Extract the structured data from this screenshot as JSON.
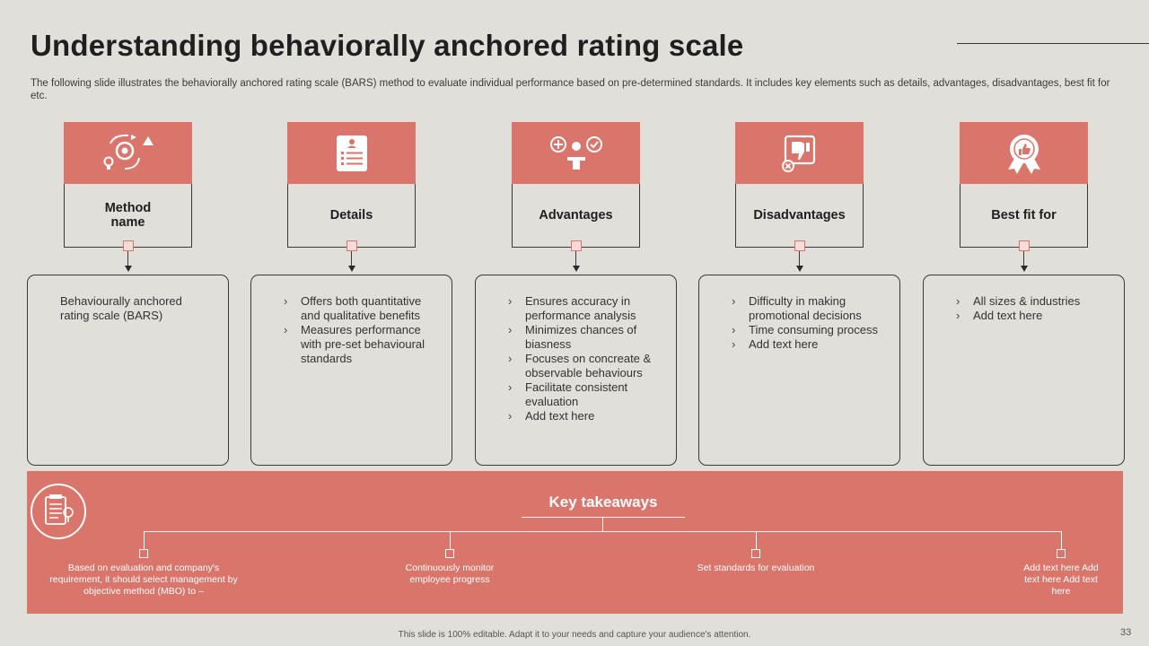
{
  "slide": {
    "title": "Understanding behaviorally anchored rating scale",
    "subtitle": "The following slide illustrates the behaviorally anchored rating scale (BARS) method to evaluate individual performance based on pre-determined standards. It includes key elements such as details, advantages, disadvantages, best fit for etc.",
    "footer": "This slide is 100% editable. Adapt it to your needs and capture your audience's attention.",
    "page_number": "33"
  },
  "columns": [
    {
      "label": "Method name",
      "icon": "process-cycle-icon",
      "content": "Behaviourally anchored rating scale (BARS)"
    },
    {
      "label": "Details",
      "icon": "clipboard-list-icon",
      "items": [
        "Offers both quantitative and qualitative benefits",
        "Measures performance with pre-set behavioural standards"
      ]
    },
    {
      "label": "Advantages",
      "icon": "person-plus-check-icon",
      "items": [
        "Ensures accuracy in performance analysis",
        "Minimizes chances of biasness",
        "Focuses on concreate & observable behaviours",
        "Facilitate consistent evaluation",
        "Add text here"
      ]
    },
    {
      "label": "Disadvantages",
      "icon": "thumbs-down-icon",
      "items": [
        "Difficulty in making promotional decisions",
        "Time consuming process",
        "Add text here"
      ]
    },
    {
      "label": "Best fit for",
      "icon": "award-badge-icon",
      "items": [
        "All sizes & industries",
        "Add text here"
      ]
    }
  ],
  "key_takeaways": {
    "title": "Key takeaways",
    "icon": "report-document-icon",
    "items": [
      "Based on evaluation and company's requirement, it should select management by objective method (MBO) to –",
      "Continuously monitor employee progress",
      "Set standards for evaluation",
      "Add text here Add text here Add text here"
    ]
  },
  "colors": {
    "accent": "#d9756b",
    "background": "#e0dfda"
  }
}
